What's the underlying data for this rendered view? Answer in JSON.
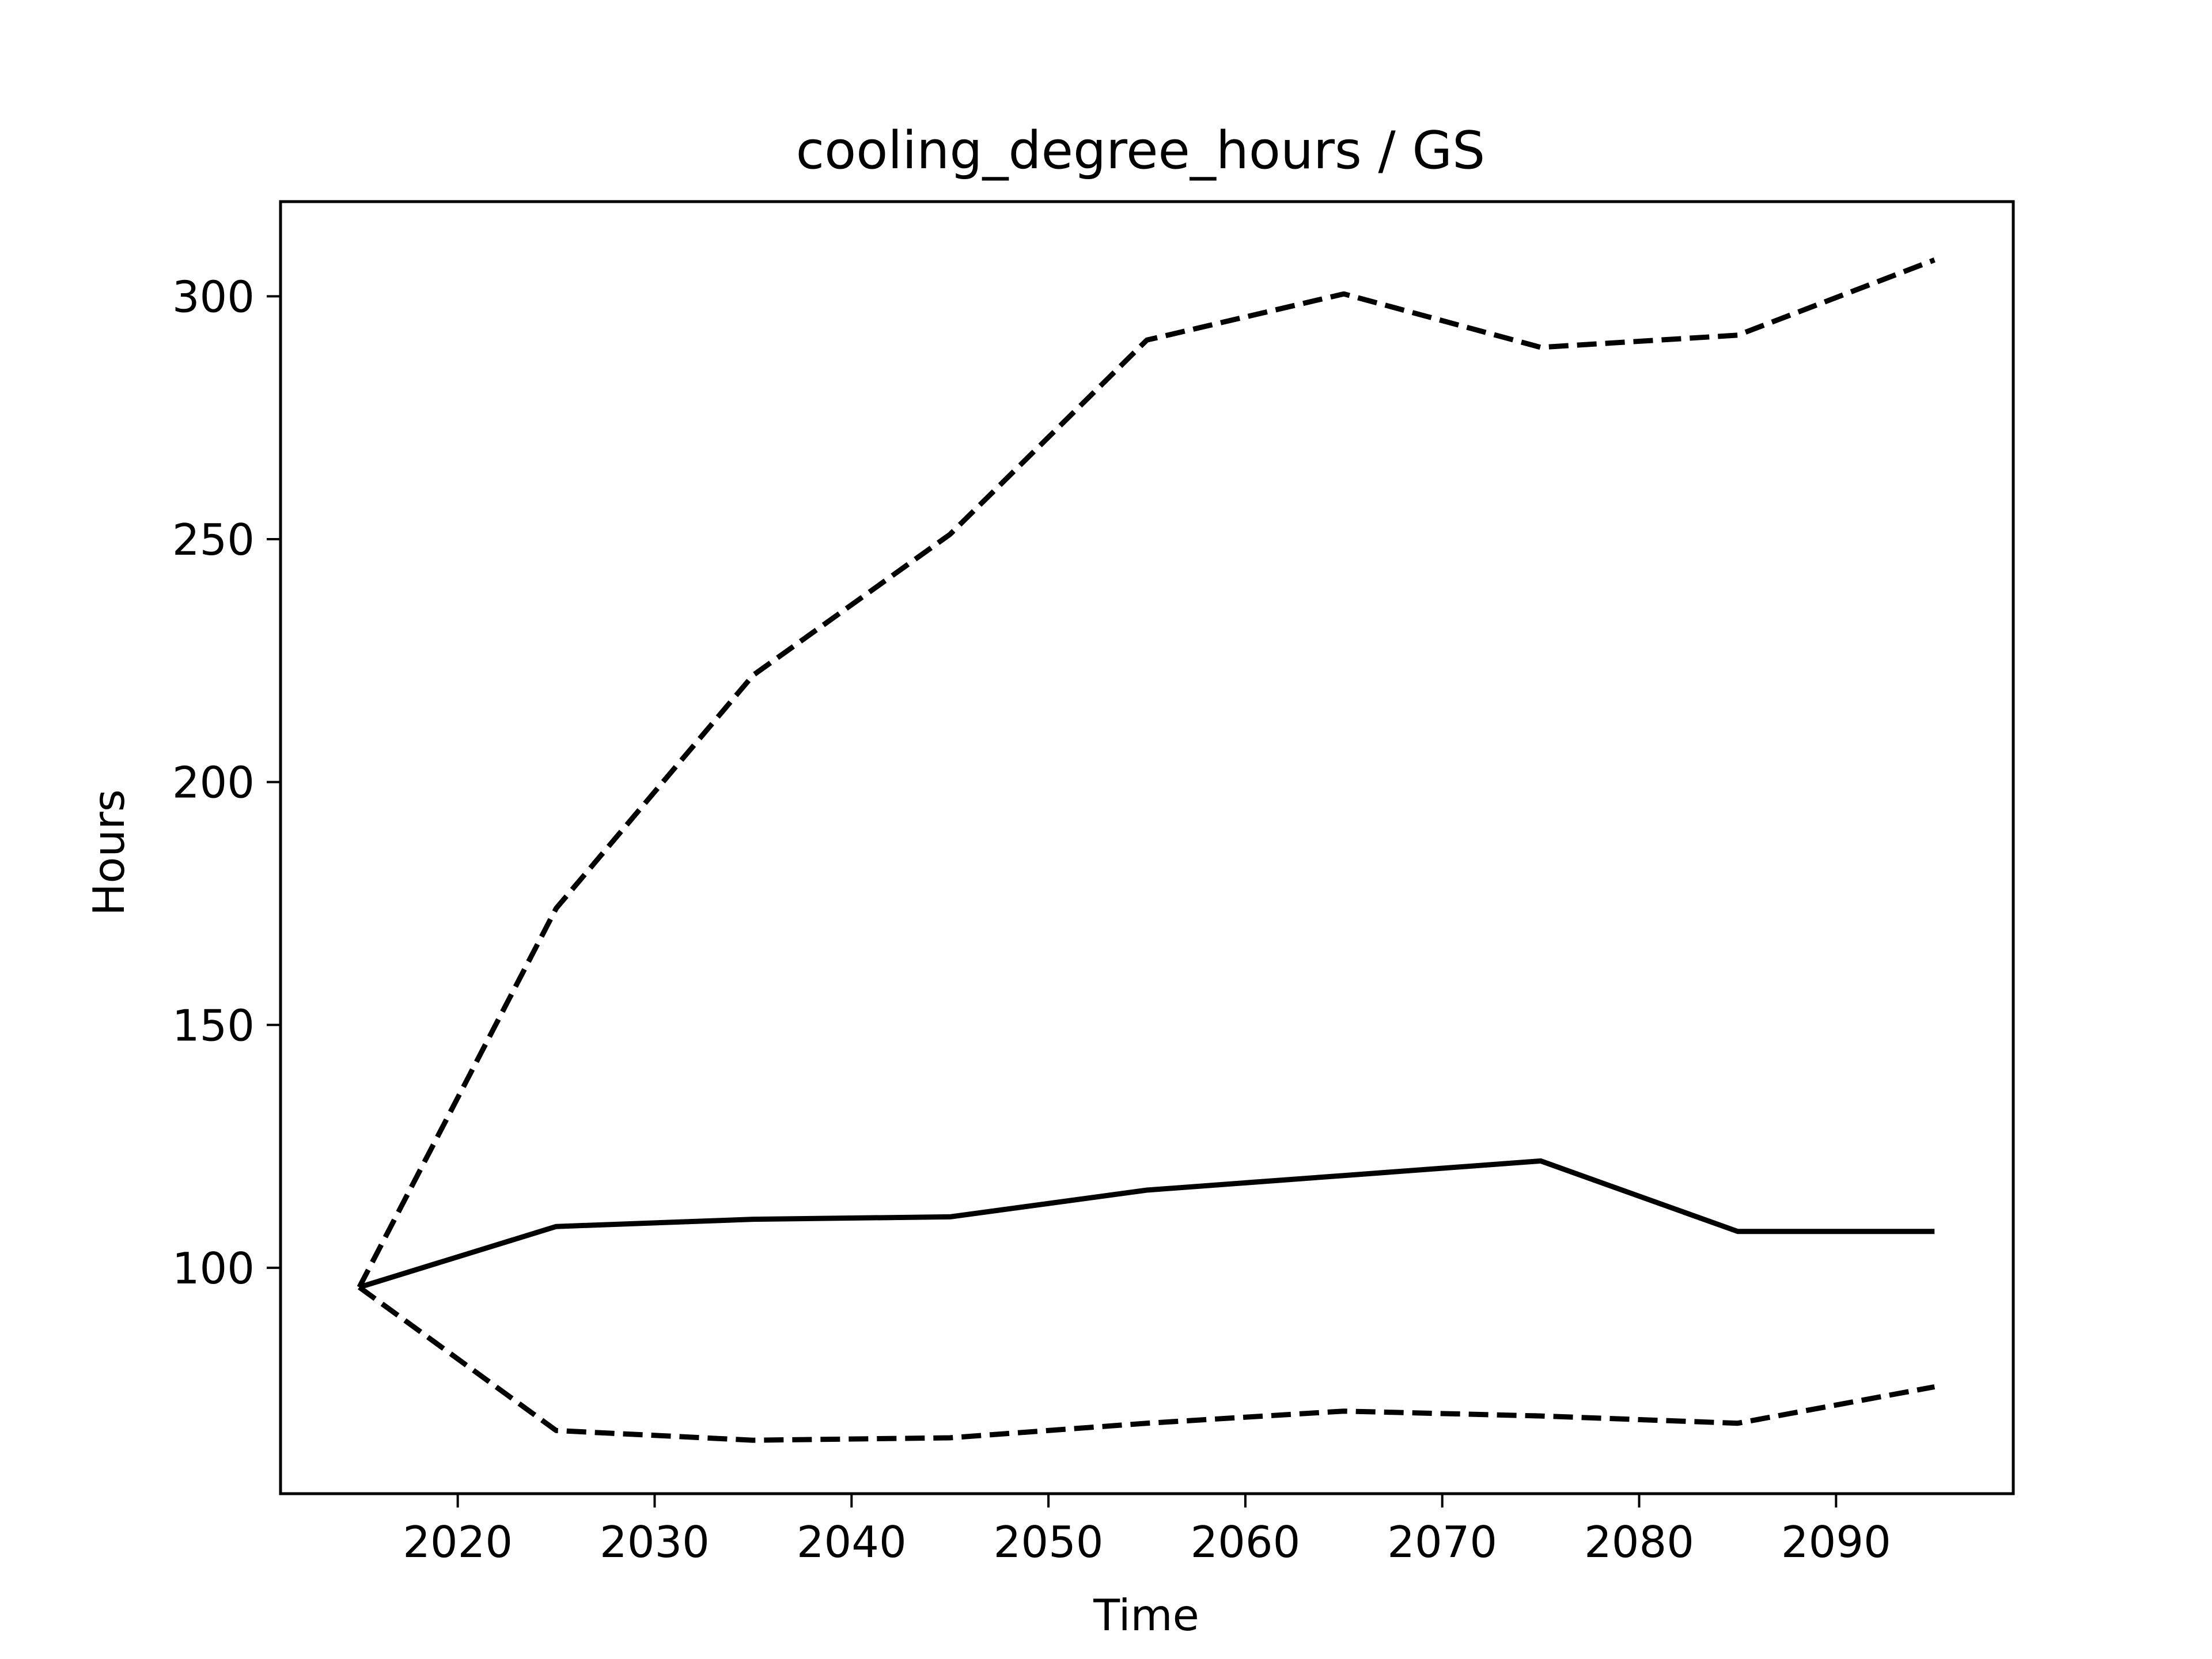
{
  "chart_data": {
    "type": "line",
    "title": "cooling_degree_hours / GS",
    "xlabel": "Time",
    "ylabel": "Hours",
    "xlim": [
      2011,
      2099
    ],
    "ylim": [
      53.5,
      319.5
    ],
    "x_ticks": [
      2020,
      2030,
      2040,
      2050,
      2060,
      2070,
      2080,
      2090
    ],
    "y_ticks": [
      100,
      150,
      200,
      250,
      300
    ],
    "grid": false,
    "x": [
      2015,
      2025,
      2035,
      2045,
      2055,
      2065,
      2075,
      2085,
      2095
    ],
    "series": [
      {
        "style": "solid",
        "values": [
          96,
          108.5,
          110,
          110.5,
          116,
          119,
          122,
          107.5,
          107.5
        ]
      },
      {
        "style": "dashed",
        "values": [
          96,
          174,
          222,
          251,
          291,
          300.5,
          289.5,
          292,
          307.5
        ]
      },
      {
        "style": "dashed",
        "values": [
          96,
          66.5,
          64.5,
          65,
          68,
          70.5,
          69.5,
          68,
          75.5
        ]
      }
    ],
    "colors": {
      "line": "#000000",
      "background": "#ffffff"
    }
  }
}
